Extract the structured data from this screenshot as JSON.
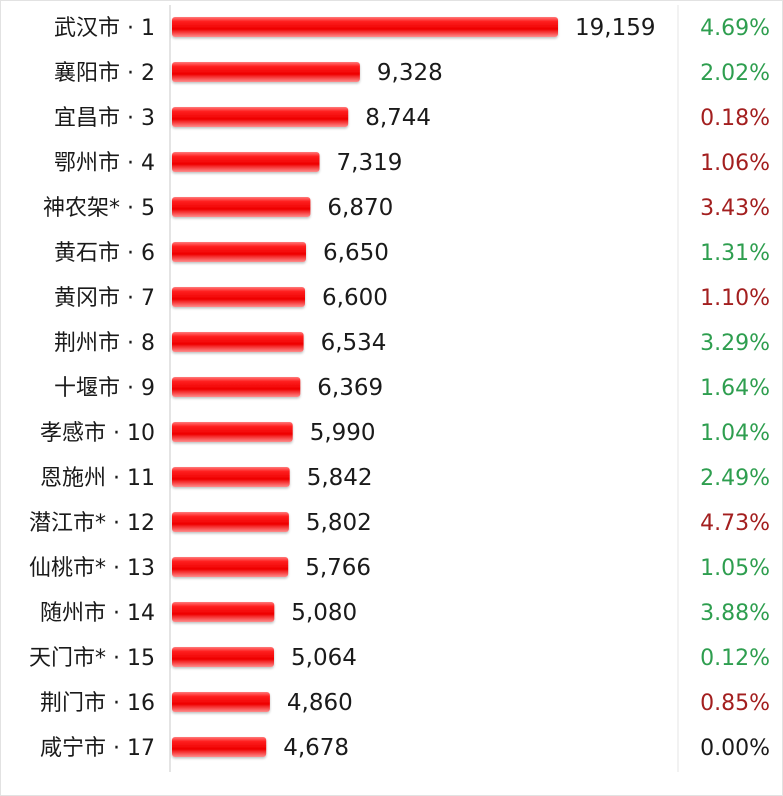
{
  "chart_data": {
    "type": "bar",
    "orientation": "horizontal",
    "categories": [
      "武汉市 · 1",
      "襄阳市 · 2",
      "宜昌市 · 3",
      "鄂州市 · 4",
      "神农架* · 5",
      "黄石市 · 6",
      "黄冈市 · 7",
      "荆州市 · 8",
      "十堰市 · 9",
      "孝感市 · 10",
      "恩施州 · 11",
      "潜江市* · 12",
      "仙桃市* · 13",
      "随州市 · 14",
      "天门市* · 15",
      "荆门市 · 16",
      "咸宁市 · 17"
    ],
    "values": [
      19159,
      9328,
      8744,
      7319,
      6870,
      6650,
      6600,
      6534,
      6369,
      5990,
      5842,
      5802,
      5766,
      5080,
      5064,
      4860,
      4678
    ],
    "value_labels": [
      "19,159",
      "9,328",
      "8,744",
      "7,319",
      "6,870",
      "6,650",
      "6,600",
      "6,534",
      "6,369",
      "5,990",
      "5,842",
      "5,802",
      "5,766",
      "5,080",
      "5,064",
      "4,860",
      "4,678"
    ],
    "percent_labels": [
      "4.69%",
      "2.02%",
      "0.18%",
      "1.06%",
      "3.43%",
      "1.31%",
      "1.10%",
      "3.29%",
      "1.64%",
      "1.04%",
      "2.49%",
      "4.73%",
      "1.05%",
      "3.88%",
      "0.12%",
      "0.85%",
      "0.00%"
    ],
    "percent_colors": [
      "#2e9e4f",
      "#2e9e4f",
      "#a31f1f",
      "#a31f1f",
      "#a31f1f",
      "#2e9e4f",
      "#a31f1f",
      "#2e9e4f",
      "#2e9e4f",
      "#2e9e4f",
      "#2e9e4f",
      "#a31f1f",
      "#2e9e4f",
      "#2e9e4f",
      "#2e9e4f",
      "#a31f1f",
      "#1a1a1a"
    ],
    "bar_color": "#ff1a1a",
    "title": "",
    "xlabel": "",
    "ylabel": "",
    "xlim": [
      0,
      19159
    ],
    "grid": false,
    "legend": "none"
  }
}
